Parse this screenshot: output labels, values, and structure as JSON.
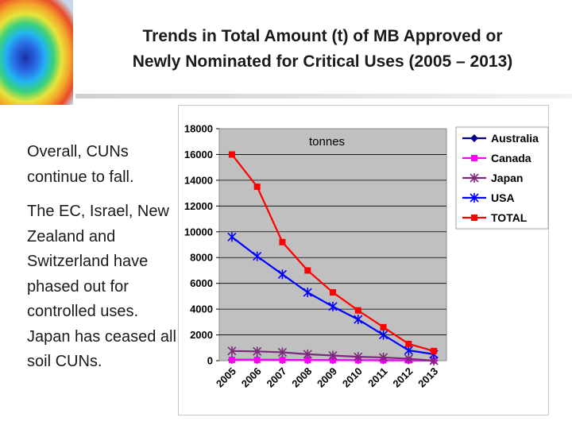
{
  "slide": {
    "title_line1": "Trends in Total Amount (t) of MB Approved or",
    "title_line2": "Newly Nominated for Critical Uses (2005 – 2013)",
    "note1": "Overall, CUNs continue to fall.",
    "note2": "The EC, Israel, New Zealand and Switzerland have phased out for controlled uses. Japan has ceased all soil CUNs."
  },
  "chart_data": {
    "type": "line",
    "annotation": "tonnes",
    "categories": [
      "2005",
      "2006",
      "2007",
      "2008",
      "2009",
      "2010",
      "2011",
      "2012",
      "2013"
    ],
    "ylim": [
      0,
      18000
    ],
    "yticks": [
      "0",
      "2000",
      "4000",
      "6000",
      "8000",
      "10000",
      "12000",
      "14000",
      "16000",
      "18000"
    ],
    "grid": true,
    "legend_position": "right",
    "series": [
      {
        "name": "Australia",
        "color": "#00008b",
        "marker": "diamond",
        "values": [
          70,
          70,
          60,
          50,
          40,
          35,
          30,
          25,
          20
        ]
      },
      {
        "name": "Canada",
        "color": "#ff00ff",
        "marker": "square",
        "values": [
          60,
          55,
          50,
          45,
          40,
          35,
          30,
          25,
          20
        ]
      },
      {
        "name": "Japan",
        "color": "#7b2a7b",
        "marker": "asterisk",
        "values": [
          750,
          720,
          650,
          500,
          400,
          300,
          250,
          150,
          0
        ]
      },
      {
        "name": "USA",
        "color": "#0000ff",
        "marker": "asterisk",
        "values": [
          9600,
          8100,
          6700,
          5300,
          4200,
          3200,
          2000,
          800,
          500
        ]
      },
      {
        "name": "TOTAL",
        "color": "#ff0000",
        "marker": "square",
        "values": [
          16000,
          13500,
          9200,
          7000,
          5300,
          3900,
          2600,
          1300,
          750
        ]
      }
    ]
  }
}
